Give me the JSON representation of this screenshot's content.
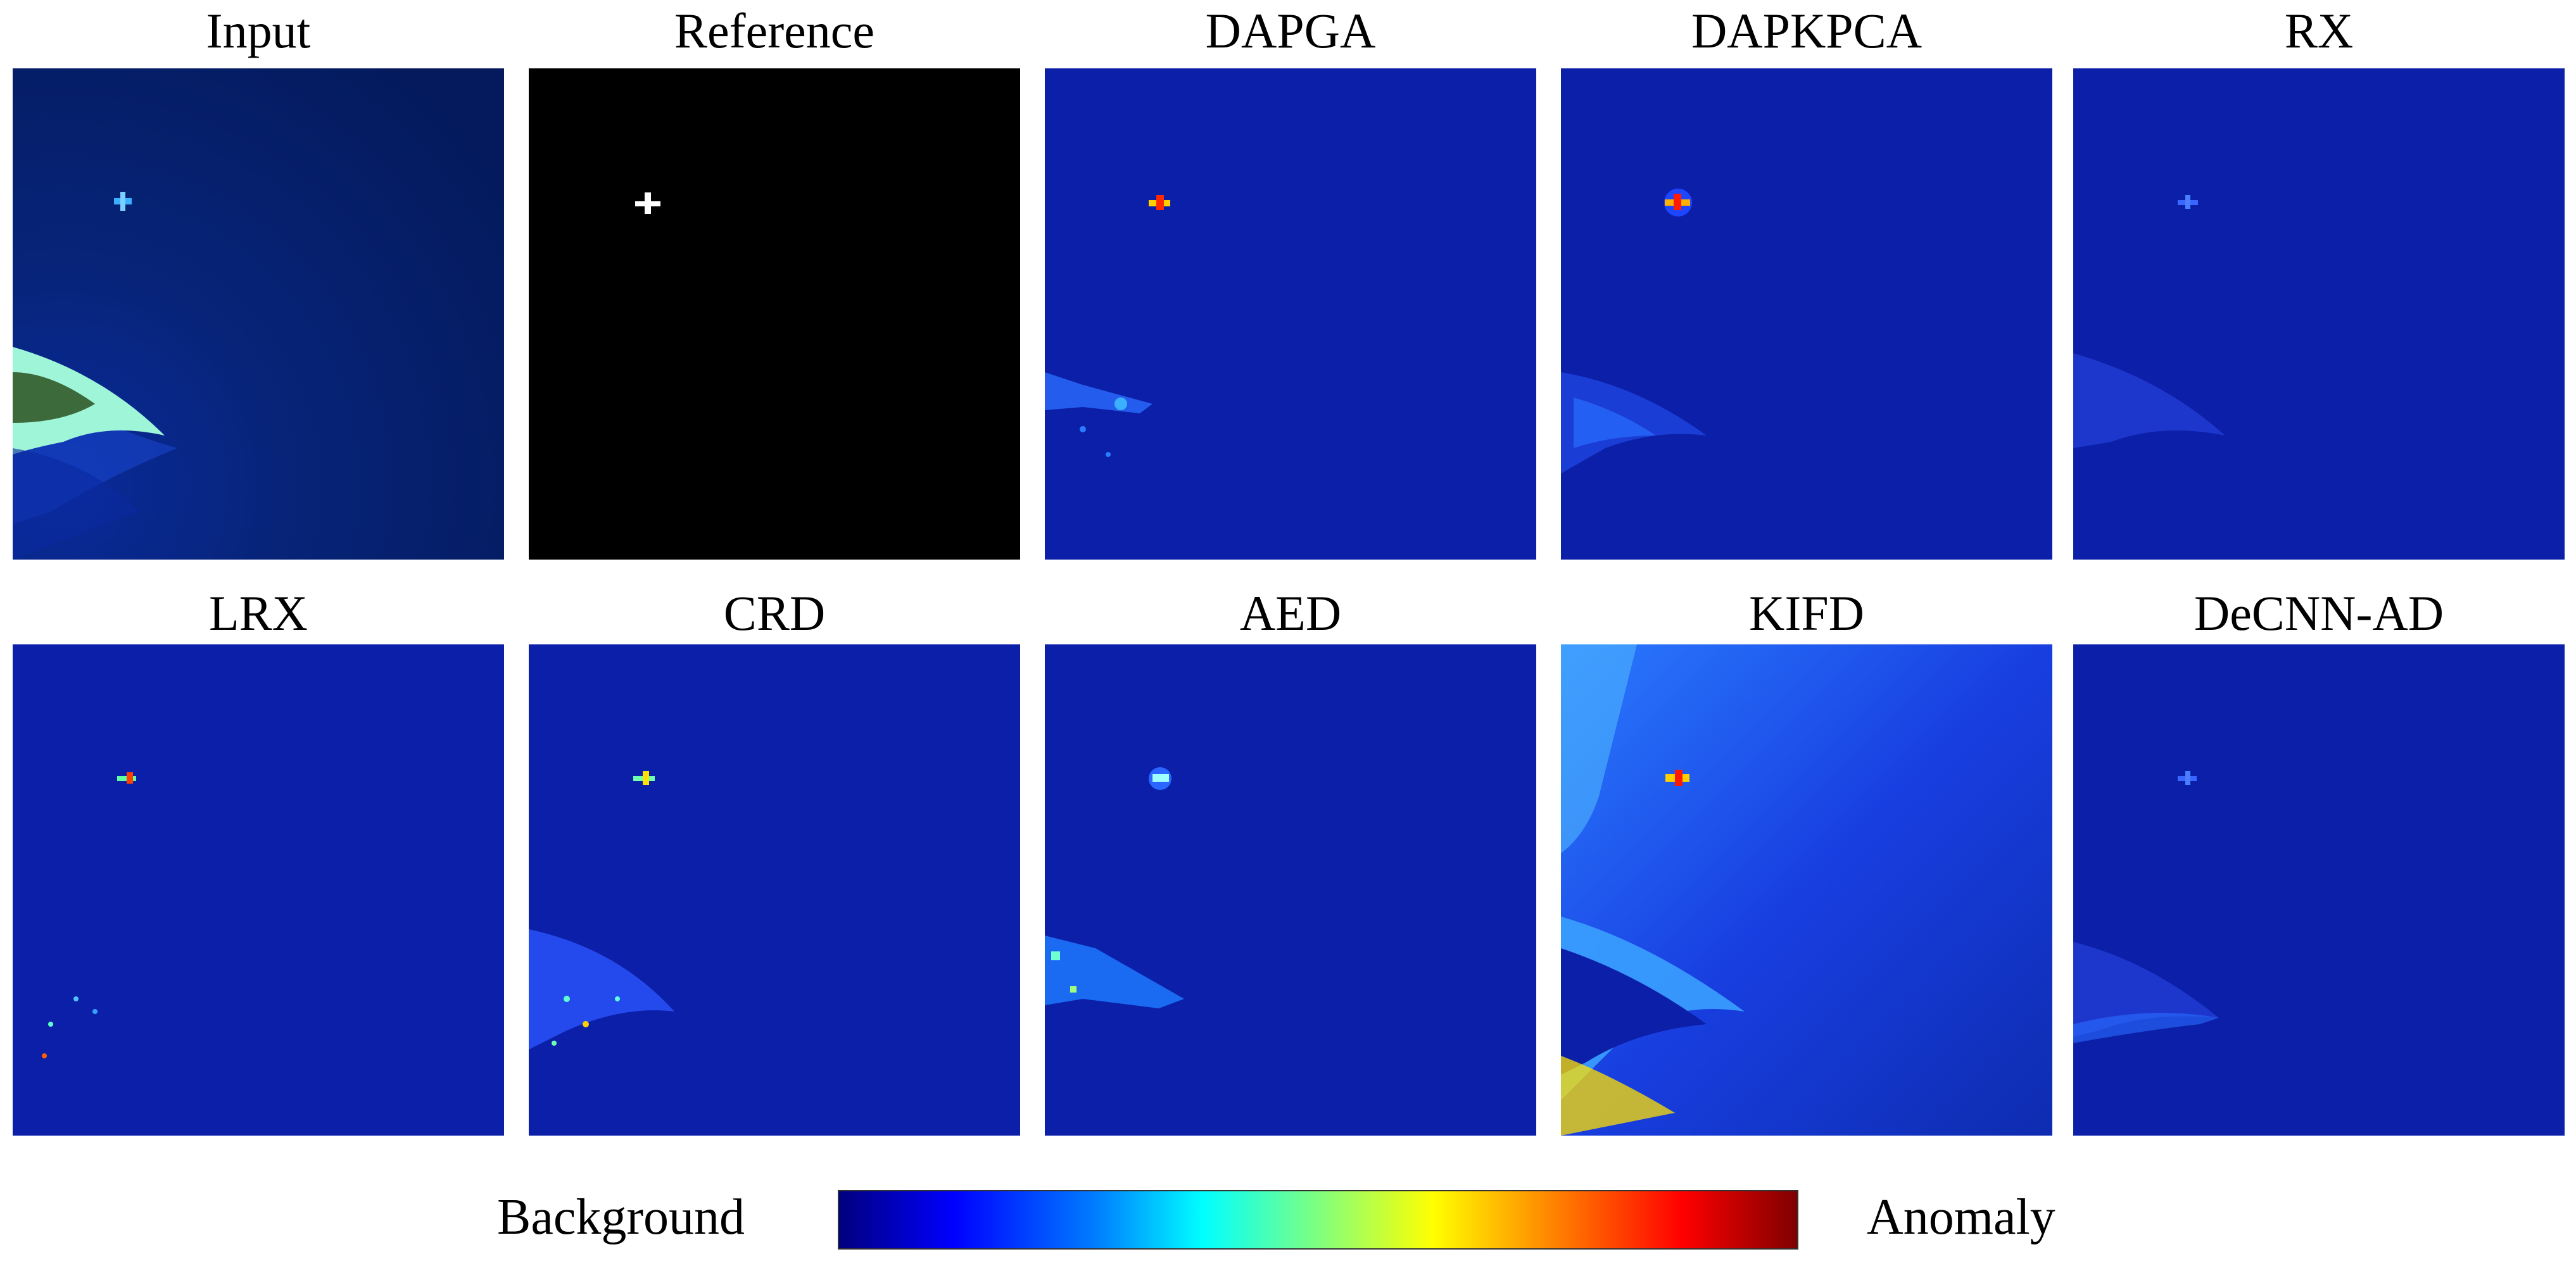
{
  "panels": [
    {
      "id": "input",
      "title": "Input"
    },
    {
      "id": "reference",
      "title": "Reference"
    },
    {
      "id": "dapga",
      "title": "DAPGA"
    },
    {
      "id": "dapkpca",
      "title": "DAPKPCA"
    },
    {
      "id": "rx",
      "title": "RX"
    },
    {
      "id": "lrx",
      "title": "LRX"
    },
    {
      "id": "crd",
      "title": "CRD"
    },
    {
      "id": "aed",
      "title": "AED"
    },
    {
      "id": "kifd",
      "title": "KIFD"
    },
    {
      "id": "decnn",
      "title": "DeCNN-AD"
    }
  ],
  "colorbar": {
    "left_label": "Background",
    "right_label": "Anomaly",
    "colormap": "jet",
    "colors": [
      "#00007f",
      "#0000ff",
      "#007fff",
      "#00ffff",
      "#7fff7f",
      "#ffff00",
      "#ff7f00",
      "#ff0000",
      "#7f0000"
    ]
  }
}
